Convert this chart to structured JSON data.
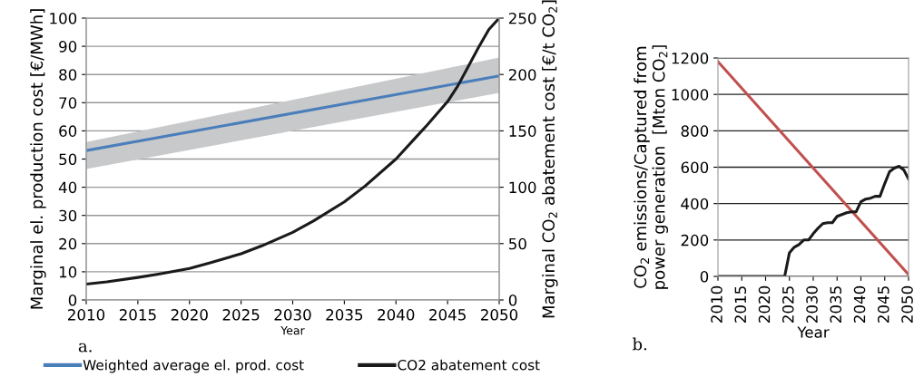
{
  "chart_data": [
    {
      "type": "line",
      "xlabel": "Year",
      "ylabel": "Marginal el. production cost [€/MWh]",
      "y2label": "Marginal CO$_{2}$ abatement cost [€/t CO$_{2}$]",
      "xlim": [
        2010,
        2050
      ],
      "xticks": [
        2010,
        2015,
        2020,
        2025,
        2030,
        2035,
        2040,
        2045,
        2050
      ],
      "ylim": [
        0,
        100
      ],
      "yticks": [
        0,
        10,
        20,
        30,
        40,
        50,
        60,
        70,
        80,
        90,
        100
      ],
      "y2lim": [
        0,
        250
      ],
      "y2ticks": [
        0,
        50,
        100,
        150,
        200,
        250
      ],
      "grid": "y",
      "legend": "bottom",
      "annotations": [
        "a."
      ],
      "series": [
        {
          "name": "Weighted average el. prod. cost",
          "color": "#4a7ebb",
          "x": [
            2010,
            2050
          ],
          "values": [
            53,
            79.5
          ],
          "lower": [
            46.5,
            73.5
          ],
          "upper": [
            56,
            86
          ]
        },
        {
          "name": "CO2 abatement cost",
          "color": "#1a1a1a",
          "axis": "y2",
          "x": [
            2010,
            2012,
            2015,
            2017,
            2020,
            2022,
            2025,
            2027,
            2030,
            2032,
            2035,
            2037,
            2040,
            2042,
            2043,
            2045,
            2046,
            2047,
            2048,
            2049,
            2050
          ],
          "values": [
            14,
            16,
            20,
            23,
            28,
            33,
            41,
            48,
            60,
            70,
            87,
            101,
            125,
            145,
            155,
            176,
            190,
            207,
            224,
            240,
            250
          ]
        }
      ]
    },
    {
      "type": "line",
      "xlabel": "Year",
      "ylabel": "CO$_{2}$ emissions/Captured from\npower generation  [Mton CO$_{2}$]",
      "xlim": [
        2010,
        2050
      ],
      "xticks": [
        2010,
        2015,
        2020,
        2025,
        2030,
        2035,
        2040,
        2045,
        2050
      ],
      "ylim": [
        0,
        1200
      ],
      "yticks": [
        0,
        200,
        400,
        600,
        800,
        1000,
        1200
      ],
      "grid": "y",
      "legend": false,
      "annotations": [
        "b."
      ],
      "series": [
        {
          "color": "#c0504d",
          "x": [
            2010,
            2050
          ],
          "values": [
            1180,
            10
          ]
        },
        {
          "color": "#1a1a1a",
          "x": [
            2010,
            2024,
            2025,
            2026,
            2027,
            2028,
            2029,
            2030,
            2031,
            2032,
            2033,
            2034,
            2035,
            2036,
            2037,
            2038,
            2039,
            2040,
            2041,
            2042,
            2043,
            2044,
            2045,
            2046,
            2047,
            2048,
            2049,
            2050
          ],
          "values": [
            0,
            0,
            130,
            160,
            175,
            200,
            200,
            235,
            265,
            290,
            295,
            295,
            330,
            340,
            350,
            355,
            355,
            410,
            425,
            430,
            440,
            440,
            510,
            575,
            595,
            605,
            585,
            535
          ]
        }
      ]
    }
  ]
}
